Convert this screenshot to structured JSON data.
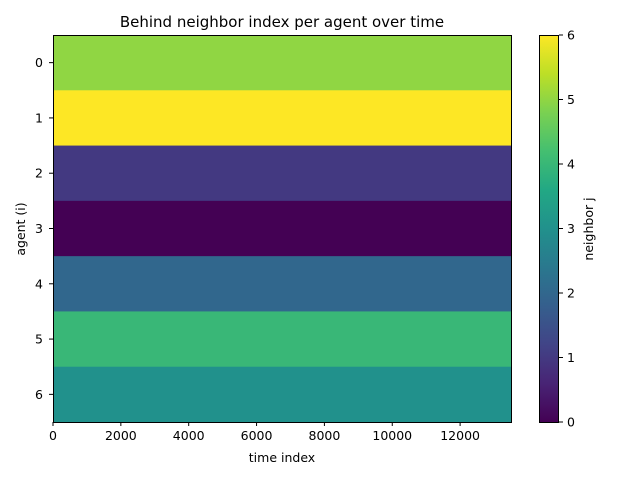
{
  "chart_data": {
    "type": "heatmap",
    "title": "Behind neighbor index per agent over time",
    "xlabel": "time index",
    "ylabel": "agent (i)",
    "colorbar_label": "neighbor j",
    "colormap": "viridis",
    "x_range": [
      0,
      13500
    ],
    "x_ticks": [
      0,
      2000,
      4000,
      6000,
      8000,
      10000,
      12000
    ],
    "y_categories": [
      0,
      1,
      2,
      3,
      4,
      5,
      6
    ],
    "values": [
      5,
      6,
      1,
      0,
      2,
      4,
      3
    ],
    "color_range": [
      0,
      6
    ],
    "colorbar_ticks": [
      0,
      1,
      2,
      3,
      4,
      5,
      6
    ]
  }
}
